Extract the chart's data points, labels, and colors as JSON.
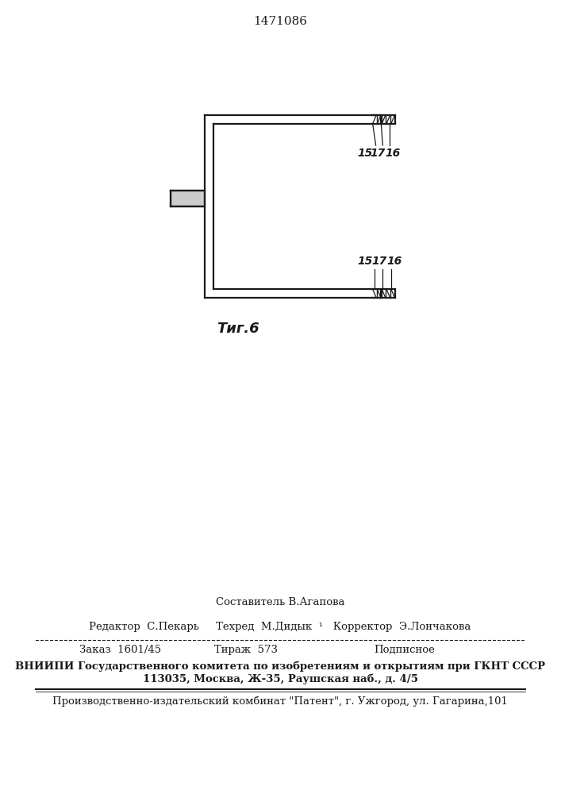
{
  "title_number": "1471086",
  "fig_label": "Τиг.6",
  "bg_color": "#ffffff",
  "line_color": "#1a1a1a",
  "label_top": "15  17  16",
  "label_bottom": "15  17  16",
  "compositor_text": "Составитель В.Агапова",
  "editor_text": "Редактор  С.Пекарь     Техред  М.Дидык  ¹   Корректор  Э.Лончакова",
  "order_text": "Заказ  1601/45",
  "tirazh_text": "Тираж  573",
  "podpisnoe_text": "Подписное",
  "vniiipi_line1": "ВНИИПИ Государственного комитета по изобретениям и открытиям при ГКНТ СССР",
  "vniiipi_line2": "113035, Москва, Ж-35, Раушская наб., д. 4/5",
  "patent_text": "Производственно-издательский комбинат \"Патент\", г. Ужгород, ул. Гагарина,101"
}
